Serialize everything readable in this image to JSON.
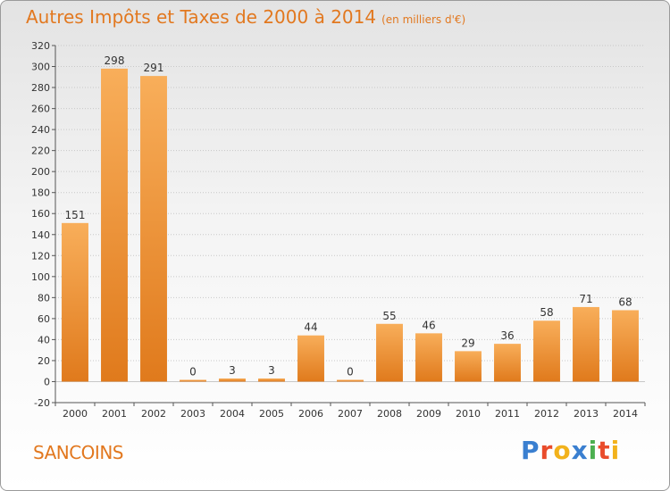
{
  "title": {
    "main": "Autres Impôts et Taxes de 2000 à 2014",
    "unit": "(en milliers d'€)"
  },
  "commune": "SANCOINS",
  "logo": {
    "letters": [
      "P",
      "r",
      "o",
      "x",
      "i",
      "t",
      "i"
    ],
    "colors": [
      "#3a7fd0",
      "#e94b2b",
      "#f2b21c",
      "#3a7fd0",
      "#4caf50",
      "#e94b2b",
      "#f2b21c"
    ]
  },
  "colors": {
    "bar_light": "#f8ae5a",
    "bar_dark": "#e07a1c",
    "title": "#e2781f",
    "grid": "#c8c8c8"
  },
  "chart_data": {
    "type": "bar",
    "title": "Autres Impôts et Taxes de 2000 à 2014",
    "categories": [
      "2000",
      "2001",
      "2002",
      "2003",
      "2004",
      "2005",
      "2006",
      "2007",
      "2008",
      "2009",
      "2010",
      "2011",
      "2012",
      "2013",
      "2014"
    ],
    "values": [
      151,
      298,
      291,
      0,
      3,
      3,
      44,
      0,
      55,
      46,
      29,
      36,
      58,
      71,
      68
    ],
    "ylim": [
      -20,
      320
    ],
    "yticks": [
      -20,
      0,
      20,
      40,
      60,
      80,
      100,
      120,
      140,
      160,
      180,
      200,
      220,
      240,
      260,
      280,
      300,
      320
    ],
    "grid": true,
    "xlabel": "",
    "ylabel": ""
  }
}
